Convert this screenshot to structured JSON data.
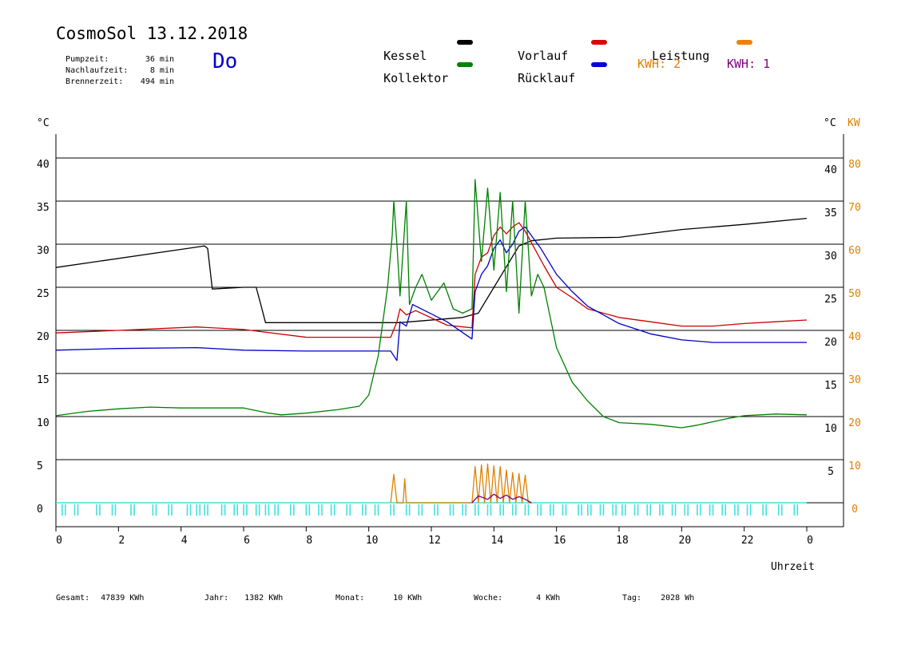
{
  "header": {
    "title": "CosmoSol 13.12.2018",
    "day": "Do",
    "stats": [
      {
        "label": "Pumpzeit:",
        "value": "36 min"
      },
      {
        "label": "Nachlaufzeit:",
        "value": "8 min"
      },
      {
        "label": "Brennerzeit:",
        "value": "494 min"
      }
    ]
  },
  "legend": {
    "items": [
      {
        "label": "Kessel",
        "color": "#000000"
      },
      {
        "label": "Vorlauf",
        "color": "#e00000"
      },
      {
        "label": "Leistung",
        "color": "#f08000"
      },
      {
        "label": "Kollektor",
        "color": "#008000"
      },
      {
        "label": "Rücklauf",
        "color": "#0000e0"
      }
    ],
    "kwh2": "KWH: 2",
    "kwh1": "KWH: 1",
    "kwh2_color": "#e08000",
    "kwh1_color": "#800080"
  },
  "footer": {
    "gesamt_label": "Gesamt:",
    "gesamt_value": "47839 KWh",
    "jahr_label": "Jahr:",
    "jahr_value": "1382 KWh",
    "monat_label": "Monat:",
    "monat_value": "10 KWh",
    "woche_label": "Woche:",
    "woche_value": "4 KWh",
    "tag_label": "Tag:",
    "tag_value": "2028 Wh"
  },
  "chart_data": {
    "type": "line",
    "xlabel": "Uhrzeit",
    "ylabel_left": "°C",
    "ylabel_right": "°C",
    "ylabel_right2": "KW",
    "xlim": [
      0,
      24
    ],
    "ylim": [
      0,
      40
    ],
    "grid": true,
    "x_ticks": [
      "0",
      "2",
      "4",
      "6",
      "8",
      "10",
      "12",
      "14",
      "16",
      "18",
      "20",
      "22",
      "0"
    ],
    "y_ticks_left": [
      "0",
      "5",
      "10",
      "15",
      "20",
      "25",
      "30",
      "35",
      "40"
    ],
    "y_ticks_right": [
      "5",
      "10",
      "15",
      "20",
      "25",
      "30",
      "35",
      "40"
    ],
    "y_ticks_kw": [
      "0",
      "10",
      "20",
      "30",
      "40",
      "50",
      "60",
      "70",
      "80"
    ],
    "series": [
      {
        "name": "Kessel",
        "color": "#000000",
        "x": [
          0,
          4.75,
          4.85,
          5.0,
          6.0,
          6.4,
          6.55,
          6.7,
          10.5,
          11.0,
          13.0,
          13.5,
          14.8,
          15.2,
          16.0,
          18.0,
          20.0,
          22.0,
          24.0
        ],
        "y": [
          27.3,
          29.8,
          29.5,
          24.8,
          25.0,
          25.0,
          23.0,
          20.9,
          20.9,
          20.9,
          21.5,
          22.0,
          29.8,
          30.4,
          30.7,
          30.8,
          31.7,
          32.3,
          33.0
        ]
      },
      {
        "name": "Vorlauf",
        "color": "#cc0000",
        "x": [
          0,
          2,
          4.5,
          6,
          8,
          10.7,
          10.9,
          11.0,
          11.2,
          11.5,
          12.5,
          13.3,
          13.4,
          13.6,
          13.8,
          14.0,
          14.2,
          14.4,
          14.6,
          14.8,
          15.0,
          15.3,
          15.6,
          16.0,
          16.5,
          17.0,
          18.0,
          19.0,
          20.0,
          21.0,
          22.0,
          23.0,
          24.0
        ],
        "y": [
          19.7,
          20.0,
          20.4,
          20.1,
          19.2,
          19.2,
          21.0,
          22.5,
          21.8,
          22.3,
          20.6,
          20.3,
          26.5,
          28.5,
          29.0,
          31.0,
          32.0,
          31.2,
          32.0,
          32.5,
          31.5,
          29.5,
          27.5,
          25.0,
          23.8,
          22.5,
          21.5,
          21.0,
          20.5,
          20.5,
          20.8,
          21.0,
          21.2
        ]
      },
      {
        "name": "Rücklauf",
        "color": "#0000cc",
        "x": [
          0,
          2,
          4.5,
          6,
          8,
          10.7,
          10.9,
          11.0,
          11.2,
          11.4,
          12.5,
          13.3,
          13.4,
          13.6,
          13.8,
          14.0,
          14.2,
          14.4,
          14.6,
          14.8,
          15.0,
          15.2,
          15.5,
          16.0,
          16.5,
          17.0,
          18.0,
          19.0,
          20.0,
          21.0,
          22.0,
          23.0,
          24.0
        ],
        "y": [
          17.7,
          17.9,
          18.0,
          17.7,
          17.6,
          17.6,
          16.5,
          21.0,
          20.5,
          23.0,
          21.0,
          19.0,
          24.5,
          26.5,
          27.5,
          29.5,
          30.5,
          29.0,
          30.0,
          31.5,
          32.0,
          31.0,
          29.5,
          26.5,
          24.5,
          22.8,
          20.8,
          19.6,
          18.9,
          18.6,
          18.6,
          18.6,
          18.6
        ]
      },
      {
        "name": "Kollektor",
        "color": "#008000",
        "x": [
          0,
          1,
          2,
          3,
          4,
          5,
          6,
          6.8,
          7.2,
          8,
          9,
          9.7,
          10.0,
          10.3,
          10.6,
          10.75,
          10.8,
          10.9,
          11.0,
          11.2,
          11.3,
          11.5,
          11.7,
          12.0,
          12.4,
          12.7,
          13.0,
          13.3,
          13.4,
          13.6,
          13.8,
          14.0,
          14.2,
          14.4,
          14.6,
          14.8,
          15.0,
          15.2,
          15.4,
          15.6,
          16.0,
          16.5,
          17.0,
          17.5,
          18.0,
          19.0,
          20.0,
          20.5,
          21.0,
          21.5,
          22.0,
          23.0,
          24.0
        ],
        "y": [
          10.1,
          10.6,
          10.9,
          11.1,
          11.0,
          11.0,
          11.0,
          10.4,
          10.2,
          10.4,
          10.8,
          11.2,
          12.5,
          17.0,
          25.0,
          31.0,
          35.0,
          30.0,
          24.0,
          35.0,
          23.0,
          25.0,
          26.5,
          23.5,
          25.5,
          22.5,
          22.0,
          22.5,
          37.5,
          28.0,
          36.5,
          27.0,
          36.0,
          24.5,
          35.0,
          22.0,
          35.0,
          24.0,
          26.5,
          25.0,
          18.0,
          14.0,
          11.8,
          10.0,
          9.3,
          9.1,
          8.7,
          9.0,
          9.4,
          9.8,
          10.1,
          10.3,
          10.2
        ]
      },
      {
        "name": "Leistung",
        "color": "#e08000",
        "x": [
          10.7,
          10.8,
          10.9,
          11.0,
          11.1,
          11.15,
          11.2,
          11.25,
          13.3,
          13.4,
          13.5,
          13.6,
          13.7,
          13.8,
          13.9,
          14.0,
          14.1,
          14.2,
          14.3,
          14.4,
          14.5,
          14.6,
          14.7,
          14.8,
          14.9,
          15.0,
          15.1,
          15.2
        ],
        "y": [
          0,
          3.3,
          0,
          0,
          0,
          2.8,
          0,
          0,
          0,
          4.2,
          0,
          4.4,
          0,
          4.5,
          0,
          4.3,
          0,
          4.2,
          0,
          3.8,
          0,
          3.5,
          0,
          3.4,
          0,
          3.2,
          0,
          0
        ]
      },
      {
        "name": "KWH: 1",
        "color": "#800080",
        "x": [
          13.3,
          13.5,
          13.8,
          14.0,
          14.2,
          14.4,
          14.6,
          14.8,
          15.0,
          15.2
        ],
        "y": [
          0,
          0.8,
          0.4,
          1.0,
          0.5,
          0.9,
          0.4,
          0.7,
          0.4,
          0
        ]
      }
    ],
    "pump_pulses": {
      "color": "#40e0e0",
      "x": [
        0.2,
        0.6,
        1.3,
        1.8,
        2.4,
        3.1,
        3.6,
        4.2,
        4.5,
        4.75,
        5.3,
        5.7,
        6.0,
        6.4,
        6.7,
        7.0,
        7.5,
        8.0,
        8.4,
        8.8,
        9.3,
        9.8,
        10.2,
        10.7,
        11.2,
        11.6,
        12.1,
        12.6,
        13.0,
        13.4,
        13.8,
        14.2,
        14.6,
        15.0,
        15.4,
        15.8,
        16.2,
        16.7,
        17.0,
        17.4,
        17.8,
        18.1,
        18.5,
        18.9,
        19.3,
        19.7,
        20.1,
        20.5,
        20.9,
        21.3,
        21.7,
        22.1,
        22.6,
        23.1,
        23.6
      ]
    }
  }
}
